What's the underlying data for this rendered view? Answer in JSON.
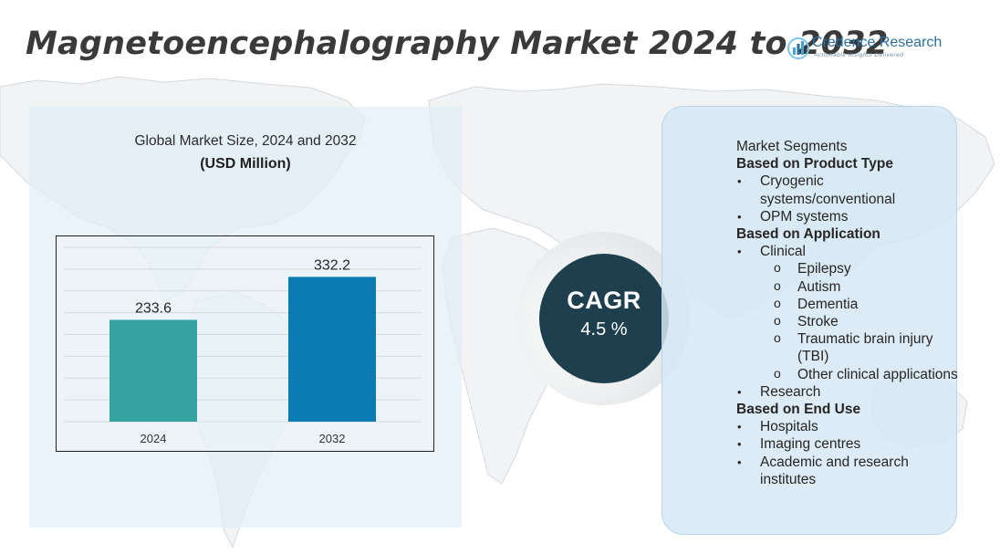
{
  "title": "Magnetoencephalography Market 2024 to 2032",
  "logo": {
    "name": "Credence Research",
    "tagline": "Actionable Insights Delivered",
    "colors": [
      "#2a6fa0",
      "#45a3d4",
      "#7cc3e8"
    ]
  },
  "colors": {
    "title": "#3a3a3a",
    "bar_2024": "#35a3a0",
    "bar_2032": "#0a7cb3",
    "cagr_circle": "#1d3f4e",
    "panel": "#e0eef7"
  },
  "chart_data": {
    "type": "bar",
    "title": "Global Market Size,  2024 and 2032",
    "subtitle": "(USD Million)",
    "categories": [
      "2024",
      "2032"
    ],
    "values": [
      233.6,
      332.2
    ],
    "value_labels": [
      "233.6",
      "332.2"
    ],
    "xlabel": "",
    "ylabel": "",
    "ylim": [
      0,
      400
    ],
    "grid": true,
    "bar_colors": [
      "#35a3a0",
      "#0a7cb3"
    ]
  },
  "cagr": {
    "label": "CAGR",
    "value": "4.5 %"
  },
  "segments": {
    "heading": "Market Segments",
    "groups": [
      {
        "title": "Based on Product Type",
        "items": [
          {
            "label": "Cryogenic systems/conventional"
          },
          {
            "label": "OPM systems"
          }
        ]
      },
      {
        "title": "Based on Application",
        "items": [
          {
            "label": "Clinical",
            "sub": [
              "Epilepsy",
              "Autism",
              "Dementia",
              "Stroke",
              "Traumatic brain injury (TBI)",
              "Other clinical applications"
            ]
          },
          {
            "label": "Research"
          }
        ]
      },
      {
        "title": "Based on End Use",
        "items": [
          {
            "label": "Hospitals"
          },
          {
            "label": "Imaging centres"
          },
          {
            "label": "Academic and research institutes"
          }
        ]
      }
    ]
  }
}
